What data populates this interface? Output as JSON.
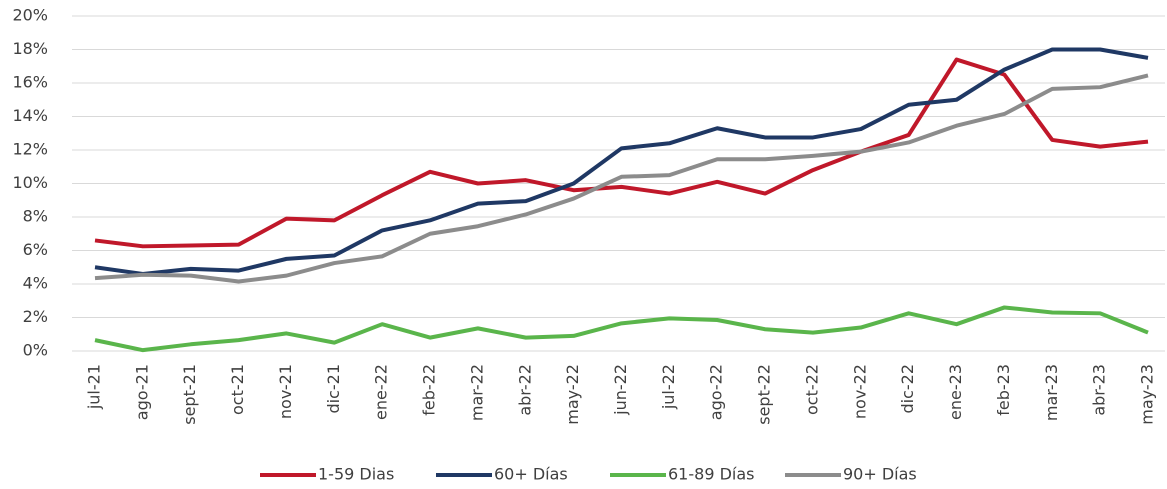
{
  "chart_data": {
    "type": "line",
    "categories": [
      "jul-21",
      "ago-21",
      "sept-21",
      "oct-21",
      "nov-21",
      "dic-21",
      "ene-22",
      "feb-22",
      "mar-22",
      "abr-22",
      "may-22",
      "jun-22",
      "jul-22",
      "ago-22",
      "sept-22",
      "oct-22",
      "nov-22",
      "dic-22",
      "ene-23",
      "feb-23",
      "mar-23",
      "abr-23",
      "may-23"
    ],
    "series": [
      {
        "name": "1-59 Dias",
        "color": "#c0182a",
        "values": [
          6.6,
          6.25,
          6.3,
          6.35,
          7.9,
          7.8,
          9.3,
          10.7,
          10.0,
          10.2,
          9.6,
          9.8,
          9.4,
          10.1,
          9.4,
          10.8,
          11.9,
          12.9,
          17.4,
          16.5,
          12.6,
          12.2,
          12.5
        ]
      },
      {
        "name": "60+ Días",
        "color": "#1f3864",
        "values": [
          5.0,
          4.6,
          4.9,
          4.8,
          5.5,
          5.7,
          7.2,
          7.8,
          8.8,
          8.95,
          10.0,
          12.1,
          12.4,
          13.3,
          12.75,
          12.75,
          13.25,
          14.7,
          15.0,
          16.8,
          18.0,
          18.0,
          17.5
        ]
      },
      {
        "name": "61-89 Días",
        "color": "#5ab54b",
        "values": [
          0.65,
          0.05,
          0.4,
          0.65,
          1.05,
          0.5,
          1.6,
          0.8,
          1.35,
          0.8,
          0.9,
          1.65,
          1.95,
          1.85,
          1.3,
          1.1,
          1.4,
          2.25,
          1.6,
          2.6,
          2.3,
          2.25,
          1.1
        ]
      },
      {
        "name": "90+ Días",
        "color": "#8c8c8c",
        "values": [
          4.35,
          4.55,
          4.5,
          4.15,
          4.5,
          5.25,
          5.65,
          7.0,
          7.45,
          8.15,
          9.1,
          10.4,
          10.5,
          11.45,
          11.45,
          11.65,
          11.9,
          12.45,
          13.45,
          14.15,
          15.65,
          15.75,
          16.45
        ]
      }
    ],
    "ylim": [
      0,
      20
    ],
    "yticks": [
      {
        "value": 0,
        "label": "0%"
      },
      {
        "value": 2,
        "label": "2%"
      },
      {
        "value": 4,
        "label": "4%"
      },
      {
        "value": 6,
        "label": "6%"
      },
      {
        "value": 8,
        "label": "8%"
      },
      {
        "value": 10,
        "label": "10%"
      },
      {
        "value": 12,
        "label": "12%"
      },
      {
        "value": 14,
        "label": "14%"
      },
      {
        "value": 16,
        "label": "16%"
      },
      {
        "value": 18,
        "label": "18%"
      },
      {
        "value": 20,
        "label": "20%"
      }
    ],
    "grid": true,
    "legend": "bottom"
  }
}
